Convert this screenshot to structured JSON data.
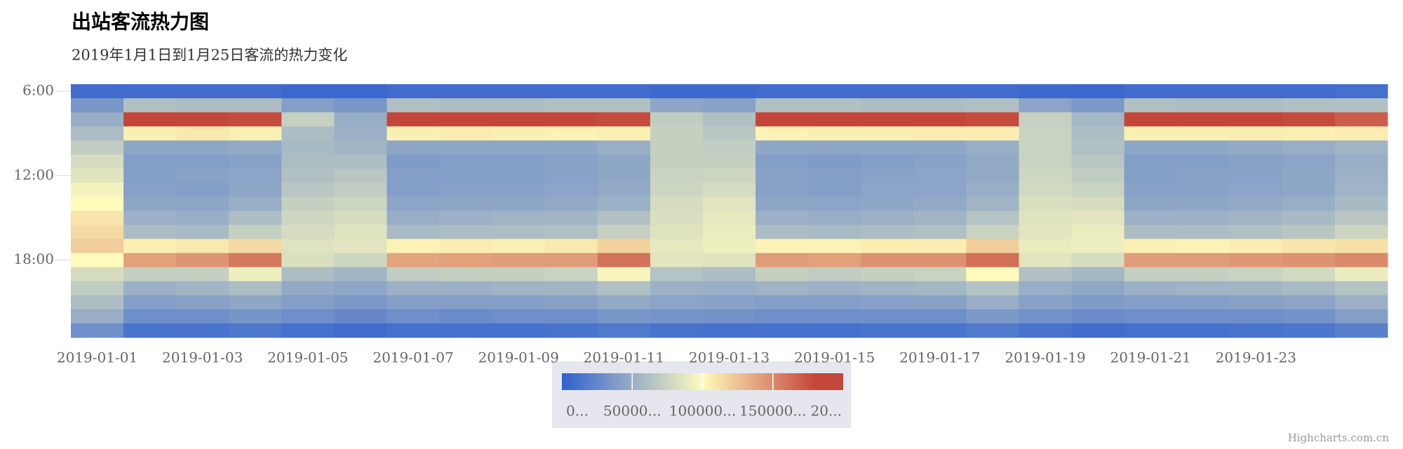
{
  "chart_data": {
    "type": "heatmap",
    "title": "出站客流热力图",
    "subtitle": "2019年1月1日到1月25日客流的热力变化",
    "credits": "Highcharts.com.cn",
    "categories": [
      "2019-01-01",
      null,
      "2019-01-03",
      null,
      "2019-01-05",
      null,
      "2019-01-07",
      null,
      "2019-01-09",
      null,
      "2019-01-11",
      null,
      "2019-01-13",
      null,
      "2019-01-15",
      null,
      "2019-01-17",
      null,
      "2019-01-19",
      null,
      "2019-01-21",
      null,
      "2019-01-23",
      null,
      null
    ],
    "y": [
      6,
      7,
      8,
      9,
      10,
      11,
      12,
      13,
      14,
      15,
      16,
      17,
      18,
      19,
      20,
      21,
      22,
      23
    ],
    "ylim": [
      5.5,
      23.5
    ],
    "yticks": [
      {
        "value": 6,
        "label": "6:00"
      },
      {
        "value": 12,
        "label": "12:00"
      },
      {
        "value": 18,
        "label": "18:00"
      }
    ],
    "colorlim": [
      0,
      200000
    ],
    "stops": [
      [
        0,
        "#3060cf"
      ],
      [
        0.5,
        "#fffbbc"
      ],
      [
        0.9,
        "#c4463a"
      ],
      [
        1,
        "#c4463a"
      ]
    ],
    "colorticks": [
      {
        "value": 0,
        "label": "0..."
      },
      {
        "value": 50000,
        "label": "50000..."
      },
      {
        "value": 100000,
        "label": "100000..."
      },
      {
        "value": 150000,
        "label": "150000..."
      },
      {
        "value": 200000,
        "label": "20..."
      }
    ],
    "values": [
      [
        8000,
        35000,
        50000,
        60000,
        70000,
        80000,
        85000,
        95000,
        100000,
        110000,
        115000,
        120000,
        100000,
        80000,
        70000,
        60000,
        50000,
        30000
      ],
      [
        8000,
        62000,
        180000,
        105000,
        45000,
        40000,
        40000,
        42000,
        45000,
        52000,
        60000,
        105000,
        140000,
        72000,
        52000,
        40000,
        30000,
        12000
      ],
      [
        8000,
        60000,
        180000,
        108000,
        45000,
        40000,
        42000,
        40000,
        45000,
        50000,
        58000,
        108000,
        145000,
        72000,
        55000,
        42000,
        30000,
        12000
      ],
      [
        8000,
        60000,
        178000,
        105000,
        48000,
        42000,
        44000,
        45000,
        50000,
        60000,
        72000,
        115000,
        158000,
        92000,
        60000,
        46000,
        34000,
        15000
      ],
      [
        5000,
        40000,
        72000,
        60000,
        58000,
        60000,
        62000,
        66000,
        72000,
        76000,
        80000,
        84000,
        82000,
        60000,
        48000,
        40000,
        30000,
        10000
      ],
      [
        5000,
        35000,
        50000,
        52000,
        55000,
        60000,
        66000,
        70000,
        76000,
        80000,
        84000,
        86000,
        76000,
        55000,
        45000,
        36000,
        26000,
        8000
      ],
      [
        8000,
        62000,
        180000,
        105000,
        45000,
        38000,
        40000,
        40000,
        44000,
        50000,
        58000,
        104000,
        138000,
        70000,
        52000,
        40000,
        30000,
        10000
      ],
      [
        8000,
        60000,
        180000,
        106000,
        46000,
        40000,
        40000,
        42000,
        45000,
        52000,
        60000,
        106000,
        140000,
        72000,
        52000,
        40000,
        28000,
        10000
      ],
      [
        8000,
        60000,
        182000,
        105000,
        45000,
        40000,
        40000,
        42000,
        46000,
        54000,
        60000,
        105000,
        142000,
        72000,
        54000,
        40000,
        30000,
        10000
      ],
      [
        8000,
        62000,
        180000,
        104000,
        46000,
        42000,
        42000,
        44000,
        48000,
        55000,
        62000,
        108000,
        142000,
        74000,
        55000,
        42000,
        30000,
        12000
      ],
      [
        8000,
        62000,
        178000,
        105000,
        50000,
        46000,
        46000,
        48000,
        52000,
        62000,
        72000,
        118000,
        160000,
        96000,
        62000,
        48000,
        35000,
        16000
      ],
      [
        6000,
        45000,
        70000,
        72000,
        72000,
        72000,
        74000,
        76000,
        80000,
        82000,
        84000,
        88000,
        86000,
        64000,
        52000,
        44000,
        34000,
        12000
      ],
      [
        6000,
        42000,
        62000,
        66000,
        70000,
        72000,
        76000,
        80000,
        86000,
        88000,
        90000,
        92000,
        84000,
        60000,
        50000,
        42000,
        32000,
        10000
      ],
      [
        8000,
        62000,
        180000,
        104000,
        46000,
        40000,
        42000,
        42000,
        45000,
        52000,
        60000,
        104000,
        142000,
        72000,
        54000,
        40000,
        30000,
        10000
      ],
      [
        8000,
        62000,
        180000,
        105000,
        45000,
        38000,
        40000,
        40000,
        44000,
        50000,
        58000,
        104000,
        140000,
        70000,
        52000,
        40000,
        30000,
        10000
      ],
      [
        8000,
        60000,
        180000,
        105000,
        46000,
        40000,
        42000,
        44000,
        46000,
        52000,
        60000,
        106000,
        146000,
        72000,
        54000,
        42000,
        30000,
        12000
      ],
      [
        8000,
        60000,
        180000,
        106000,
        46000,
        42000,
        44000,
        44000,
        48000,
        54000,
        62000,
        106000,
        146000,
        74000,
        56000,
        42000,
        30000,
        12000
      ],
      [
        8000,
        62000,
        178000,
        106000,
        50000,
        48000,
        48000,
        50000,
        54000,
        64000,
        74000,
        120000,
        162000,
        100000,
        64000,
        50000,
        36000,
        16000
      ],
      [
        6000,
        44000,
        72000,
        74000,
        74000,
        74000,
        76000,
        78000,
        82000,
        84000,
        86000,
        90000,
        86000,
        62000,
        50000,
        42000,
        32000,
        12000
      ],
      [
        5000,
        36000,
        56000,
        60000,
        62000,
        66000,
        70000,
        74000,
        80000,
        86000,
        90000,
        92000,
        80000,
        56000,
        46000,
        38000,
        28000,
        8000
      ],
      [
        8000,
        62000,
        180000,
        105000,
        45000,
        40000,
        40000,
        42000,
        45000,
        52000,
        60000,
        105000,
        142000,
        72000,
        52000,
        40000,
        30000,
        10000
      ],
      [
        8000,
        60000,
        180000,
        105000,
        46000,
        40000,
        42000,
        42000,
        46000,
        52000,
        60000,
        104000,
        142000,
        72000,
        54000,
        40000,
        30000,
        10000
      ],
      [
        8000,
        60000,
        182000,
        106000,
        48000,
        42000,
        42000,
        44000,
        48000,
        54000,
        62000,
        106000,
        144000,
        74000,
        55000,
        42000,
        30000,
        12000
      ],
      [
        8000,
        62000,
        178000,
        105000,
        50000,
        44000,
        46000,
        46000,
        50000,
        58000,
        66000,
        110000,
        146000,
        78000,
        58000,
        44000,
        32000,
        14000
      ],
      [
        10000,
        62000,
        170000,
        106000,
        54000,
        50000,
        52000,
        54000,
        58000,
        66000,
        76000,
        112000,
        150000,
        90000,
        64000,
        52000,
        40000,
        20000
      ]
    ]
  }
}
